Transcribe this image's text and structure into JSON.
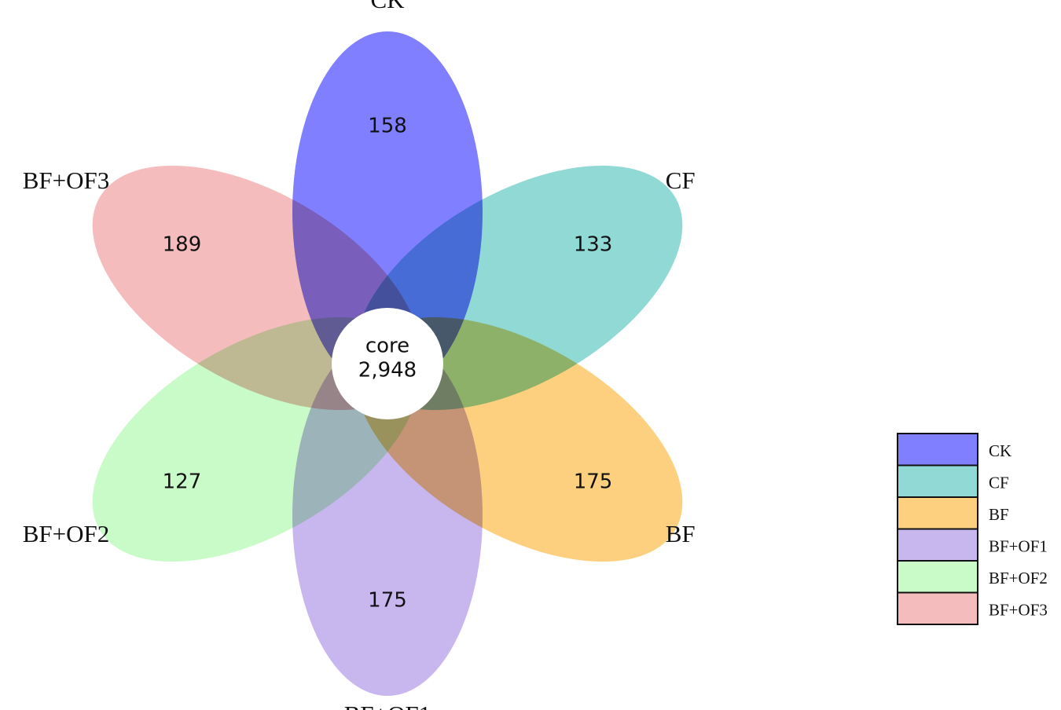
{
  "chart_data": {
    "type": "flower",
    "categories": [
      "CK",
      "CF",
      "BF",
      "BF+OF1",
      "BF+OF2",
      "BF+OF3"
    ],
    "values": [
      158,
      133,
      175,
      175,
      127,
      189
    ],
    "colors": [
      "#7f7fff",
      "#90d9d5",
      "#fcd07f",
      "#c8b6ee",
      "#c8fbc8",
      "#f4bcbc"
    ],
    "core": {
      "name": "core",
      "value": 2948,
      "value_label": "2,948"
    },
    "legend": "right"
  }
}
